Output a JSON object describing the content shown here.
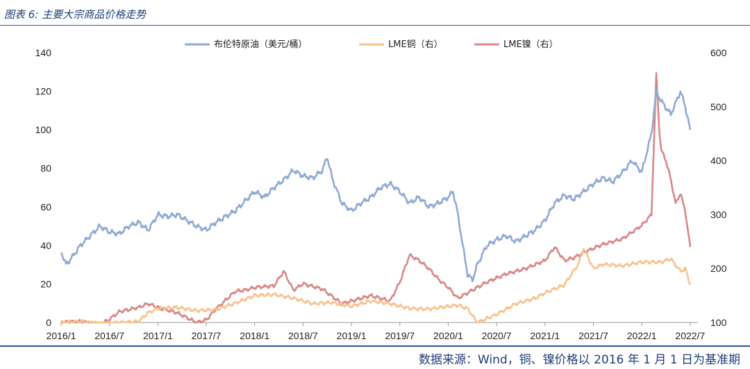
{
  "header": {
    "title": "图表 6: 主要大宗商品价格走势"
  },
  "footer": {
    "source": "数据来源：Wind，铜、镍价格以 2016 年 1 月 1 日为基准期"
  },
  "chart_data": {
    "type": "line",
    "x_tick_labels": [
      "2016/1",
      "2016/7",
      "2017/1",
      "2017/7",
      "2018/1",
      "2018/7",
      "2019/1",
      "2019/7",
      "2020/1",
      "2020/7",
      "2021/1",
      "2021/7",
      "2022/1",
      "2022/7"
    ],
    "y_left": {
      "ticks": [
        0,
        20,
        40,
        60,
        80,
        100,
        120,
        140
      ],
      "lim": [
        0,
        140
      ]
    },
    "y_right": {
      "ticks": [
        100,
        200,
        300,
        400,
        500,
        600
      ],
      "lim": [
        100,
        600
      ]
    },
    "grid": false,
    "legend_position": "top",
    "series": [
      {
        "name": "布伦特原油（美元/桶）",
        "axis": "left",
        "color": "#8eaad6",
        "x": [
          2016.0,
          2016.05,
          2016.1,
          2016.2,
          2016.3,
          2016.4,
          2016.5,
          2016.6,
          2016.7,
          2016.8,
          2016.9,
          2017.0,
          2017.1,
          2017.2,
          2017.3,
          2017.4,
          2017.5,
          2017.6,
          2017.7,
          2017.8,
          2017.9,
          2018.0,
          2018.1,
          2018.2,
          2018.3,
          2018.4,
          2018.5,
          2018.6,
          2018.7,
          2018.75,
          2018.8,
          2018.9,
          2019.0,
          2019.1,
          2019.2,
          2019.3,
          2019.4,
          2019.5,
          2019.6,
          2019.7,
          2019.8,
          2019.9,
          2020.0,
          2020.05,
          2020.1,
          2020.15,
          2020.2,
          2020.25,
          2020.3,
          2020.35,
          2020.4,
          2020.5,
          2020.6,
          2020.7,
          2020.8,
          2020.9,
          2021.0,
          2021.1,
          2021.2,
          2021.3,
          2021.4,
          2021.5,
          2021.6,
          2021.7,
          2021.8,
          2021.9,
          2022.0,
          2022.05,
          2022.1,
          2022.15,
          2022.2,
          2022.3,
          2022.4,
          2022.45,
          2022.5
        ],
        "y": [
          37,
          30,
          33,
          40,
          45,
          50,
          47,
          46,
          50,
          52,
          48,
          56,
          55,
          56,
          53,
          50,
          48,
          52,
          55,
          58,
          63,
          68,
          65,
          70,
          74,
          79,
          76,
          75,
          79,
          86,
          75,
          62,
          58,
          62,
          65,
          70,
          72,
          68,
          62,
          65,
          60,
          62,
          65,
          68,
          56,
          40,
          25,
          22,
          30,
          35,
          40,
          43,
          45,
          42,
          45,
          48,
          53,
          62,
          66,
          64,
          68,
          72,
          75,
          73,
          78,
          84,
          78,
          88,
          98,
          120,
          115,
          108,
          120,
          112,
          100
        ]
      },
      {
        "name": "LME铜（右）",
        "axis": "right",
        "color": "#f7c38e",
        "x": [
          2016.0,
          2016.2,
          2016.4,
          2016.6,
          2016.8,
          2016.9,
          2017.0,
          2017.2,
          2017.4,
          2017.6,
          2017.8,
          2018.0,
          2018.2,
          2018.4,
          2018.6,
          2018.8,
          2019.0,
          2019.2,
          2019.4,
          2019.6,
          2019.8,
          2020.0,
          2020.1,
          2020.2,
          2020.3,
          2020.5,
          2020.7,
          2020.9,
          2021.0,
          2021.2,
          2021.35,
          2021.4,
          2021.5,
          2021.6,
          2021.8,
          2022.0,
          2022.2,
          2022.3,
          2022.4,
          2022.45,
          2022.5
        ],
        "y": [
          100,
          102,
          98,
          100,
          102,
          118,
          126,
          128,
          122,
          124,
          136,
          150,
          152,
          145,
          135,
          137,
          130,
          140,
          135,
          126,
          125,
          130,
          132,
          126,
          100,
          115,
          135,
          145,
          155,
          170,
          210,
          238,
          200,
          208,
          205,
          212,
          212,
          218,
          195,
          200,
          170
        ]
      },
      {
        "name": "LME镍（右）",
        "axis": "right",
        "color": "#d98886",
        "x": [
          2016.0,
          2016.2,
          2016.4,
          2016.5,
          2016.6,
          2016.8,
          2016.9,
          2017.0,
          2017.2,
          2017.4,
          2017.5,
          2017.6,
          2017.8,
          2017.9,
          2018.0,
          2018.2,
          2018.3,
          2018.4,
          2018.5,
          2018.7,
          2018.9,
          2019.0,
          2019.2,
          2019.4,
          2019.5,
          2019.6,
          2019.7,
          2019.8,
          2019.9,
          2020.0,
          2020.1,
          2020.2,
          2020.3,
          2020.4,
          2020.6,
          2020.8,
          2021.0,
          2021.1,
          2021.2,
          2021.3,
          2021.4,
          2021.6,
          2021.8,
          2022.0,
          2022.1,
          2022.15,
          2022.18,
          2022.2,
          2022.25,
          2022.3,
          2022.35,
          2022.4,
          2022.45,
          2022.5
        ],
        "y": [
          100,
          102,
          96,
          106,
          120,
          128,
          135,
          128,
          118,
          100,
          105,
          125,
          158,
          160,
          165,
          168,
          195,
          160,
          172,
          162,
          135,
          140,
          150,
          140,
          175,
          225,
          215,
          200,
          180,
          165,
          145,
          155,
          165,
          175,
          190,
          200,
          215,
          240,
          215,
          220,
          230,
          245,
          255,
          280,
          300,
          560,
          460,
          420,
          400,
          365,
          320,
          340,
          305,
          240
        ]
      }
    ]
  }
}
